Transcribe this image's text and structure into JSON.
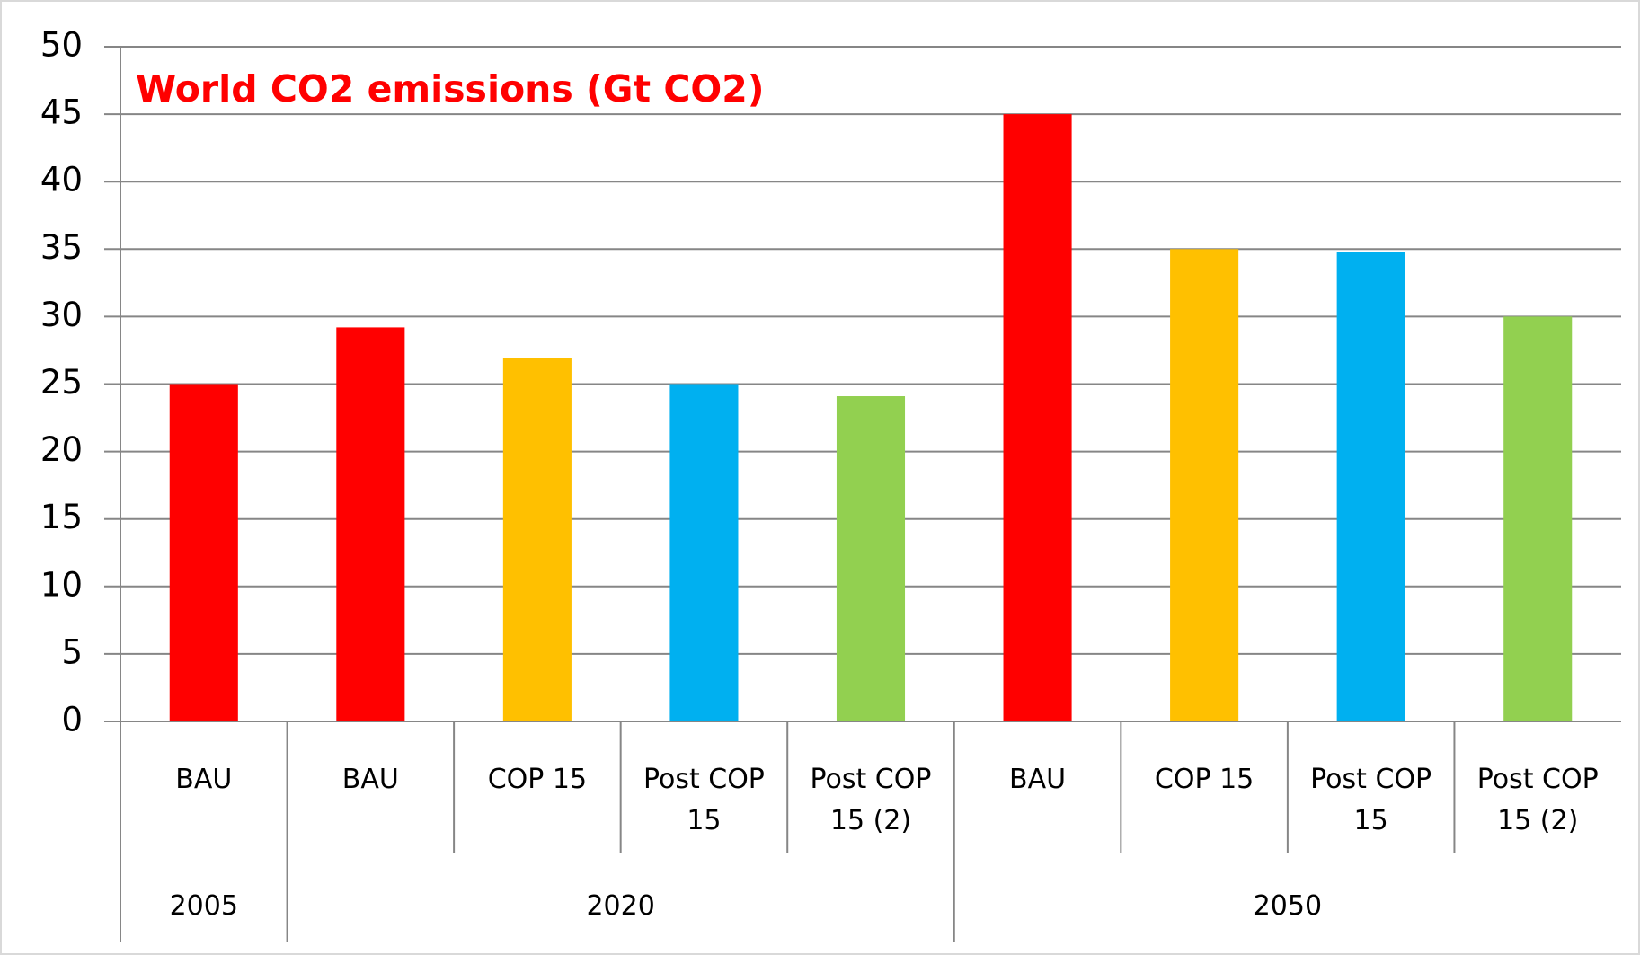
{
  "chart_data": {
    "type": "bar",
    "title": "World CO2 emissions (Gt CO2)",
    "title_color": "#ff0000",
    "ylim": [
      0,
      50
    ],
    "yticks": [
      0,
      5,
      10,
      15,
      20,
      25,
      30,
      35,
      40,
      45,
      50
    ],
    "grid": true,
    "groups": [
      {
        "name": "2005",
        "categories": [
          "BAU"
        ],
        "values": [
          25
        ],
        "colors": [
          "#ff0000"
        ]
      },
      {
        "name": "2020",
        "categories": [
          "BAU",
          "COP 15",
          "Post COP 15",
          "Post COP 15 (2)"
        ],
        "values": [
          29.2,
          26.9,
          25,
          24.1
        ],
        "colors": [
          "#ff0000",
          "#ffc000",
          "#00b0f0",
          "#92d050"
        ]
      },
      {
        "name": "2050",
        "categories": [
          "BAU",
          "COP 15",
          "Post COP 15",
          "Post COP 15 (2)"
        ],
        "values": [
          45,
          35,
          34.8,
          30
        ],
        "colors": [
          "#ff0000",
          "#ffc000",
          "#00b0f0",
          "#92d050"
        ]
      }
    ]
  }
}
